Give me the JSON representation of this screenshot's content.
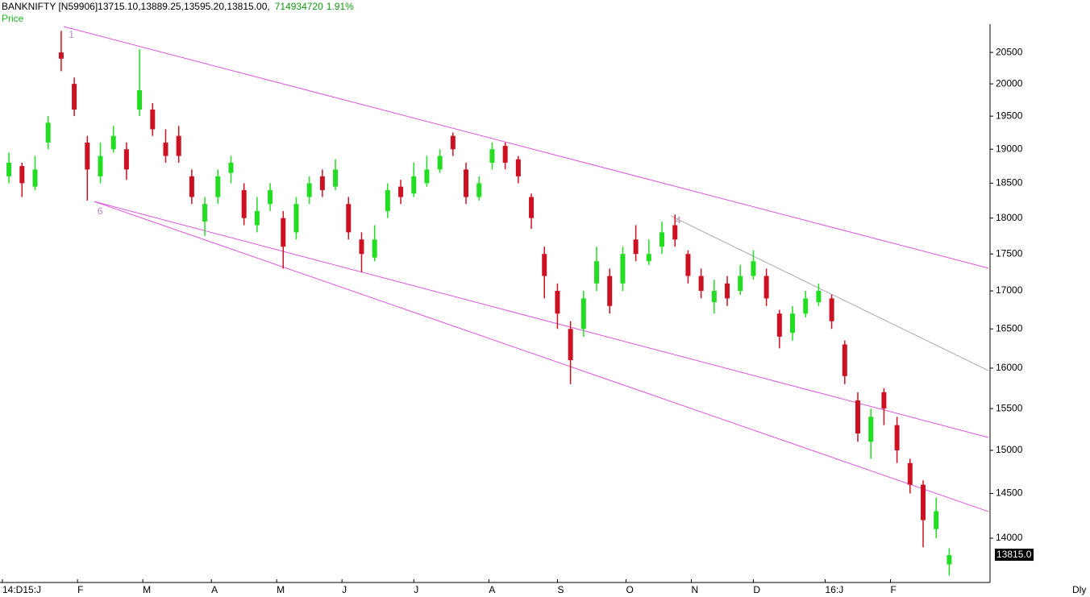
{
  "chart_data": {
    "type": "candlestick",
    "symbol": "BANKNIFTY [N59906]",
    "ohlc_text": "13715.10,13889.25,13595.20,13815.00,",
    "volume_text": "714934720",
    "change_text": "1.91%",
    "series_label": "Price",
    "period_label": "Dly",
    "current_price_label": "13815.0",
    "up_color": "#22dd22",
    "down_color": "#cc1122",
    "log_scale": true,
    "xlim": [
      0,
      302
    ],
    "ylim": [
      13530,
      20960
    ],
    "yticks": [
      14000,
      14500,
      15000,
      15500,
      16000,
      16500,
      17000,
      17500,
      18000,
      18500,
      19000,
      19500,
      20000,
      20500
    ],
    "xticks": [
      {
        "value": 0,
        "label": "14:D15:J"
      },
      {
        "value": 23,
        "label": "F"
      },
      {
        "value": 43,
        "label": "M"
      },
      {
        "value": 64,
        "label": "A"
      },
      {
        "value": 84,
        "label": "M"
      },
      {
        "value": 104,
        "label": "J"
      },
      {
        "value": 126,
        "label": "J"
      },
      {
        "value": 149,
        "label": "A"
      },
      {
        "value": 170,
        "label": "S"
      },
      {
        "value": 191,
        "label": "O"
      },
      {
        "value": 211,
        "label": "N"
      },
      {
        "value": 230,
        "label": "D"
      },
      {
        "value": 252,
        "label": "16:J"
      },
      {
        "value": 272,
        "label": "F"
      }
    ],
    "x": [
      2,
      6,
      10,
      14,
      18,
      22,
      26,
      30,
      34,
      38,
      42,
      46,
      50,
      54,
      58,
      62,
      66,
      70,
      74,
      78,
      82,
      86,
      90,
      94,
      98,
      102,
      106,
      110,
      114,
      118,
      122,
      126,
      130,
      134,
      138,
      142,
      146,
      150,
      154,
      158,
      162,
      166,
      170,
      174,
      178,
      182,
      186,
      190,
      194,
      198,
      202,
      206,
      210,
      214,
      218,
      222,
      226,
      230,
      234,
      238,
      242,
      246,
      250,
      254,
      258,
      262,
      266,
      270,
      274,
      278,
      282,
      286,
      290
    ],
    "open": [
      18600,
      18750,
      18450,
      19100,
      20500,
      20000,
      19100,
      18600,
      19000,
      19000,
      19600,
      19600,
      19100,
      19200,
      18600,
      17950,
      18300,
      18650,
      18400,
      17900,
      18200,
      18000,
      17800,
      18300,
      18600,
      18450,
      18200,
      17700,
      17450,
      18100,
      18450,
      18350,
      18500,
      18700,
      19200,
      18700,
      18300,
      18800,
      19050,
      18850,
      18300,
      17500,
      17000,
      16500,
      16500,
      17100,
      17200,
      17100,
      17700,
      17400,
      17600,
      17900,
      17500,
      17200,
      16850,
      17100,
      17000,
      17200,
      17200,
      16700,
      16450,
      16700,
      16850,
      16900,
      16300,
      15600,
      15100,
      15700,
      15300,
      14850,
      14600,
      14100,
      13715.1
    ],
    "high": [
      18950,
      18800,
      18900,
      19500,
      20850,
      20100,
      19200,
      19100,
      19350,
      19100,
      20550,
      19700,
      19300,
      19350,
      18700,
      18300,
      18700,
      18900,
      18500,
      18300,
      18500,
      18100,
      18300,
      18600,
      18700,
      18850,
      18300,
      17800,
      17900,
      18500,
      18550,
      18800,
      18900,
      19000,
      19250,
      18800,
      18600,
      19100,
      19100,
      18900,
      18350,
      17600,
      17100,
      16600,
      17000,
      17600,
      17300,
      17600,
      17900,
      17700,
      17950,
      18050,
      17550,
      17300,
      17150,
      17200,
      17350,
      17550,
      17300,
      16750,
      16800,
      17000,
      17100,
      16950,
      16350,
      15700,
      15500,
      15750,
      15400,
      14900,
      14650,
      14450,
      13889.25
    ],
    "low": [
      18500,
      18300,
      18400,
      19000,
      20200,
      19500,
      18250,
      18500,
      18950,
      18550,
      19500,
      19200,
      18800,
      18800,
      18200,
      17750,
      18200,
      18500,
      17900,
      17800,
      18100,
      17300,
      17700,
      18200,
      18300,
      18400,
      17700,
      17250,
      17400,
      18000,
      18200,
      18300,
      18450,
      18650,
      18900,
      18200,
      18250,
      18700,
      18700,
      18500,
      17850,
      16900,
      16500,
      15800,
      16400,
      17000,
      16700,
      17000,
      17400,
      17350,
      17500,
      17600,
      17100,
      16900,
      16700,
      16800,
      16950,
      17150,
      16800,
      16250,
      16350,
      16650,
      16800,
      16500,
      15800,
      15100,
      14900,
      15300,
      14850,
      14500,
      13900,
      14000,
      13595.2
    ],
    "close": [
      18800,
      18500,
      18700,
      19400,
      20400,
      19600,
      18700,
      18900,
      19200,
      18700,
      19900,
      19300,
      18900,
      18900,
      18300,
      18200,
      18600,
      18800,
      18000,
      18100,
      18400,
      17600,
      18200,
      18500,
      18400,
      18700,
      17800,
      17500,
      17700,
      18400,
      18300,
      18600,
      18700,
      18900,
      19000,
      18300,
      18500,
      19000,
      18800,
      18600,
      18000,
      17200,
      16700,
      16100,
      16900,
      17400,
      16800,
      17500,
      17500,
      17500,
      17800,
      17700,
      17200,
      17000,
      17000,
      16900,
      17200,
      17400,
      16900,
      16400,
      16700,
      16900,
      17000,
      16600,
      15900,
      15200,
      15400,
      15500,
      15000,
      14600,
      14200,
      14300,
      13815
    ],
    "trendlines": [
      {
        "color": "#dd55dd",
        "x": [
          18.8,
          302
        ],
        "y": [
          20920,
          17306
        ]
      },
      {
        "color": "#dd55dd",
        "x": [
          28.1,
          302
        ],
        "y": [
          18236,
          14296
        ]
      },
      {
        "color": "#dd55dd",
        "x": [
          28.1,
          302
        ],
        "y": [
          18236,
          15152
        ]
      },
      {
        "color": "#aaaaaa",
        "x": [
          204.7,
          302
        ],
        "y": [
          18031,
          15968
        ]
      }
    ],
    "annotations": [
      {
        "text": "1",
        "x": 20.3,
        "y": 20780
      },
      {
        "text": "6",
        "x": 29.1,
        "y": 18090
      },
      {
        "text": "4",
        "x": 206.2,
        "y": 17960
      }
    ]
  }
}
